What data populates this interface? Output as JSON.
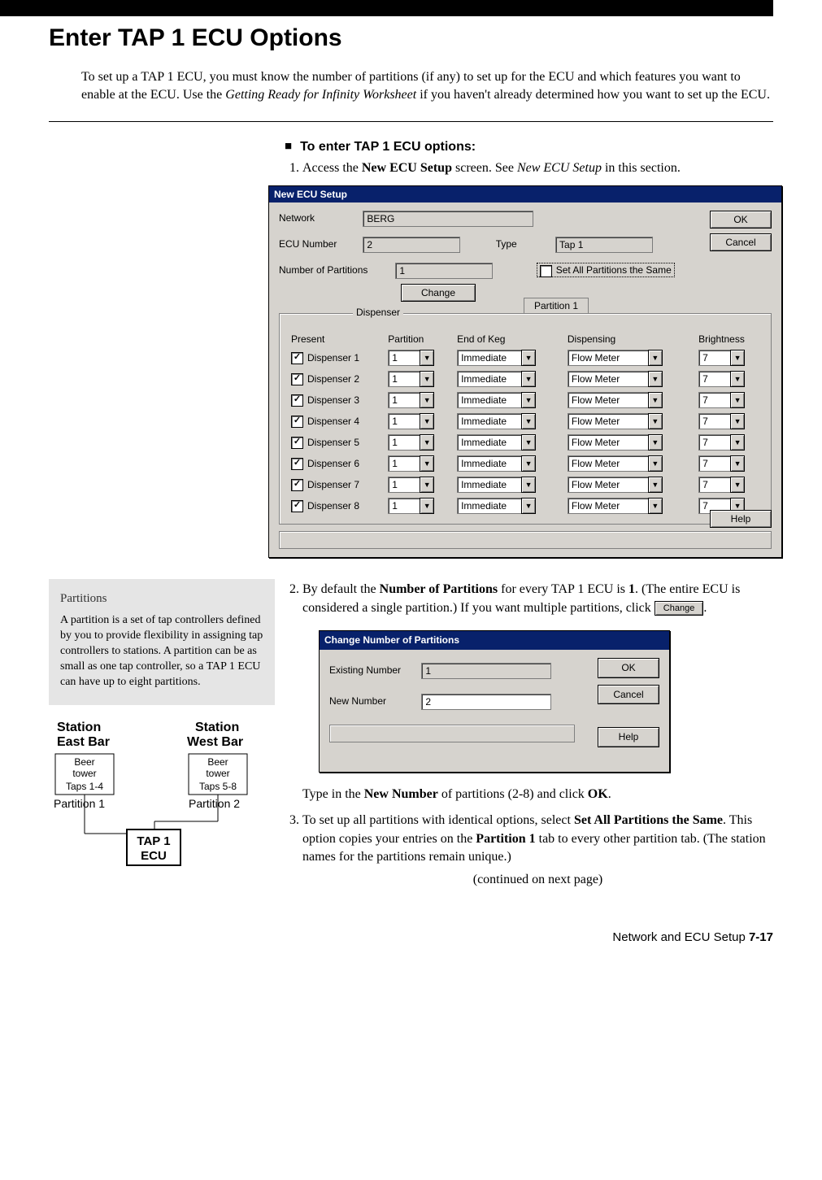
{
  "page": {
    "title": "Enter TAP 1 ECU Options",
    "intro_a": "To set up a TAP 1 ECU, you must know the number of partitions (if any) to set up for the ECU and which features you want to enable at the ECU. Use the ",
    "intro_b": "Getting Ready for Infinity Worksheet",
    "intro_c": " if you haven't already determined how you want to set up the ECU.",
    "subhead": "To enter TAP 1 ECU options:",
    "step1_a": "Access the ",
    "step1_b": "New ECU Setup",
    "step1_c": " screen. See ",
    "step1_d": "New ECU Setup",
    "step1_e": " in this section.",
    "step2_a": "By default the ",
    "step2_b": "Number of Partitions",
    "step2_c": " for every TAP 1 ECU is ",
    "step2_d": "1",
    "step2_e": ". (The entire ECU is considered a single partition.) If you want multiple partitions, click ",
    "step2_btn": "Change",
    "step2_f": ".",
    "step2_tail_a": "Type in the ",
    "step2_tail_b": "New Number",
    "step2_tail_c": " of partitions (2-8) and click ",
    "step2_tail_d": "OK",
    "step2_tail_e": ".",
    "step3_a": "To set up all partitions with identical options, select ",
    "step3_b": "Set All Partitions the Same",
    "step3_c": ". This option copies your entries on the ",
    "step3_d": "Partition 1",
    "step3_e": " tab to every other partition tab. (The station names for the partitions remain unique.)",
    "continued": "(continued on next page)",
    "footer_a": "Network and ECU Setup  ",
    "footer_b": "7-17"
  },
  "sidebar": {
    "title": "Partitions",
    "body": "A partition is a set of tap controllers defined by you to provide flexibility in assigning tap controllers to stations. A partition can be as small as one tap controller, so a TAP 1 ECU can have up to eight partitions."
  },
  "diagram": {
    "station_east_a": "Station",
    "station_east_b": "East Bar",
    "station_west_a": "Station",
    "station_west_b": "West Bar",
    "tower1_a": "Beer",
    "tower1_b": "tower",
    "tower1_c": "Taps 1-4",
    "tower2_a": "Beer",
    "tower2_b": "tower",
    "tower2_c": "Taps 5-8",
    "part1": "Partition 1",
    "part2": "Partition 2",
    "ecu_a": "TAP 1",
    "ecu_b": "ECU"
  },
  "dlg1": {
    "title": "New ECU Setup",
    "network_lbl": "Network",
    "network_val": "BERG",
    "ecunum_lbl": "ECU Number",
    "ecunum_val": "2",
    "type_lbl": "Type",
    "type_val": "Tap 1",
    "npart_lbl": "Number of Partitions",
    "npart_val": "1",
    "setall_lbl": "Set All Partitions the Same",
    "change_btn": "Change",
    "ok": "OK",
    "cancel": "Cancel",
    "help": "Help",
    "group_disp": "Dispenser",
    "tab_part": "Partition 1",
    "h_present": "Present",
    "h_partition": "Partition",
    "h_eok": "End of Keg",
    "h_dispensing": "Dispensing",
    "h_bright": "Brightness",
    "disp_prefix": "Dispenser ",
    "rows": [
      "1",
      "2",
      "3",
      "4",
      "5",
      "6",
      "7",
      "8"
    ],
    "part_val": "1",
    "eok_val": "Immediate",
    "dispensing_val": "Flow Meter",
    "bright_val": "7"
  },
  "dlg2": {
    "title": "Change Number of Partitions",
    "existing_lbl": "Existing Number",
    "existing_val": "1",
    "new_lbl": "New Number",
    "new_val": "2",
    "ok": "OK",
    "cancel": "Cancel",
    "help": "Help"
  }
}
